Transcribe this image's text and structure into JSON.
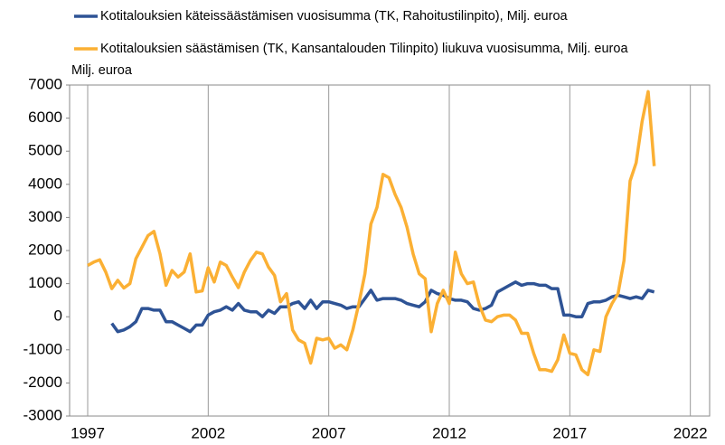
{
  "chart_data": {
    "type": "line",
    "y_axis_label": "Milj. euroa",
    "xlim": [
      1996.25,
      2022.8
    ],
    "xticks": [
      1997,
      2002,
      2007,
      2012,
      2017,
      2022
    ],
    "ylim": [
      -3000,
      7000
    ],
    "yticks": [
      -3000,
      -2000,
      -1000,
      0,
      1000,
      2000,
      3000,
      4000,
      5000,
      6000,
      7000
    ],
    "grid": true,
    "series": [
      {
        "name": "Kotitalouksien käteissäästämisen vuosisumma (TK, Rahoitustilinpito), Milj. euroa",
        "color": "#2e5395",
        "x": [
          1998.0,
          1998.25,
          1998.5,
          1998.75,
          1999.0,
          1999.25,
          1999.5,
          1999.75,
          2000.0,
          2000.25,
          2000.5,
          2000.75,
          2001.0,
          2001.25,
          2001.5,
          2001.75,
          2002.0,
          2002.25,
          2002.5,
          2002.75,
          2003.0,
          2003.25,
          2003.5,
          2003.75,
          2004.0,
          2004.25,
          2004.5,
          2004.75,
          2005.0,
          2005.25,
          2005.5,
          2005.75,
          2006.0,
          2006.25,
          2006.5,
          2006.75,
          2007.0,
          2007.25,
          2007.5,
          2007.75,
          2008.0,
          2008.25,
          2008.5,
          2008.75,
          2009.0,
          2009.25,
          2009.5,
          2009.75,
          2010.0,
          2010.25,
          2010.5,
          2010.75,
          2011.0,
          2011.25,
          2011.5,
          2011.75,
          2012.0,
          2012.25,
          2012.5,
          2012.75,
          2013.0,
          2013.25,
          2013.5,
          2013.75,
          2014.0,
          2014.25,
          2014.5,
          2014.75,
          2015.0,
          2015.25,
          2015.5,
          2015.75,
          2016.0,
          2016.25,
          2016.5,
          2016.75,
          2017.0,
          2017.25,
          2017.5,
          2017.75,
          2018.0,
          2018.25,
          2018.5,
          2018.75,
          2019.0,
          2019.25,
          2019.5,
          2019.75,
          2020.0,
          2020.25,
          2020.5
        ],
        "values": [
          -200,
          -450,
          -400,
          -300,
          -150,
          250,
          250,
          200,
          200,
          -150,
          -150,
          -250,
          -350,
          -450,
          -250,
          -250,
          50,
          150,
          200,
          300,
          200,
          400,
          200,
          150,
          150,
          0,
          200,
          100,
          300,
          300,
          400,
          450,
          250,
          500,
          250,
          450,
          450,
          400,
          350,
          250,
          300,
          300,
          550,
          800,
          500,
          550,
          550,
          550,
          500,
          400,
          350,
          300,
          450,
          800,
          700,
          650,
          550,
          500,
          500,
          450,
          250,
          200,
          250,
          350,
          750,
          850,
          950,
          1050,
          950,
          1000,
          1000,
          950,
          950,
          850,
          850,
          50,
          50,
          0,
          0,
          400,
          450,
          450,
          500,
          600,
          650,
          600,
          550,
          600,
          550,
          800,
          750
        ]
      },
      {
        "name": "Kotitalouksien säästämisen (TK, Kansantalouden Tilinpito) liukuva vuosisumma, Milj. euroa",
        "color": "#fbb034",
        "x": [
          1997.0,
          1997.25,
          1997.5,
          1997.75,
          1998.0,
          1998.25,
          1998.5,
          1998.75,
          1999.0,
          1999.25,
          1999.5,
          1999.75,
          2000.0,
          2000.25,
          2000.5,
          2000.75,
          2001.0,
          2001.25,
          2001.5,
          2001.75,
          2002.0,
          2002.25,
          2002.5,
          2002.75,
          2003.0,
          2003.25,
          2003.5,
          2003.75,
          2004.0,
          2004.25,
          2004.5,
          2004.75,
          2005.0,
          2005.25,
          2005.5,
          2005.75,
          2006.0,
          2006.25,
          2006.5,
          2006.75,
          2007.0,
          2007.25,
          2007.5,
          2007.75,
          2008.0,
          2008.25,
          2008.5,
          2008.75,
          2009.0,
          2009.25,
          2009.5,
          2009.75,
          2010.0,
          2010.25,
          2010.5,
          2010.75,
          2011.0,
          2011.25,
          2011.5,
          2011.75,
          2012.0,
          2012.25,
          2012.5,
          2012.75,
          2013.0,
          2013.25,
          2013.5,
          2013.75,
          2014.0,
          2014.25,
          2014.5,
          2014.75,
          2015.0,
          2015.25,
          2015.5,
          2015.75,
          2016.0,
          2016.25,
          2016.5,
          2016.75,
          2017.0,
          2017.25,
          2017.5,
          2017.75,
          2018.0,
          2018.25,
          2018.5,
          2018.75,
          2019.0,
          2019.25,
          2019.5,
          2019.75,
          2020.0,
          2020.25,
          2020.5
        ],
        "values": [
          1550,
          1650,
          1720,
          1350,
          850,
          1100,
          870,
          1000,
          1750,
          2100,
          2450,
          2580,
          1900,
          950,
          1400,
          1200,
          1350,
          1900,
          750,
          780,
          1480,
          1050,
          1650,
          1550,
          1200,
          880,
          1350,
          1700,
          1950,
          1900,
          1500,
          1250,
          450,
          700,
          -400,
          -700,
          -800,
          -1400,
          -650,
          -700,
          -650,
          -950,
          -850,
          -1000,
          -400,
          400,
          1300,
          2800,
          3300,
          4300,
          4200,
          3700,
          3300,
          2700,
          1900,
          1300,
          1150,
          -450,
          400,
          800,
          400,
          1950,
          1300,
          1000,
          1050,
          350,
          -100,
          -150,
          0,
          50,
          50,
          -100,
          -500,
          -500,
          -1100,
          -1600,
          -1600,
          -1650,
          -1300,
          -550,
          -1100,
          -1150,
          -1600,
          -1750,
          -1000,
          -1050,
          0,
          400,
          700,
          1700,
          4100,
          4650,
          5900,
          6800,
          4550
        ]
      }
    ]
  }
}
